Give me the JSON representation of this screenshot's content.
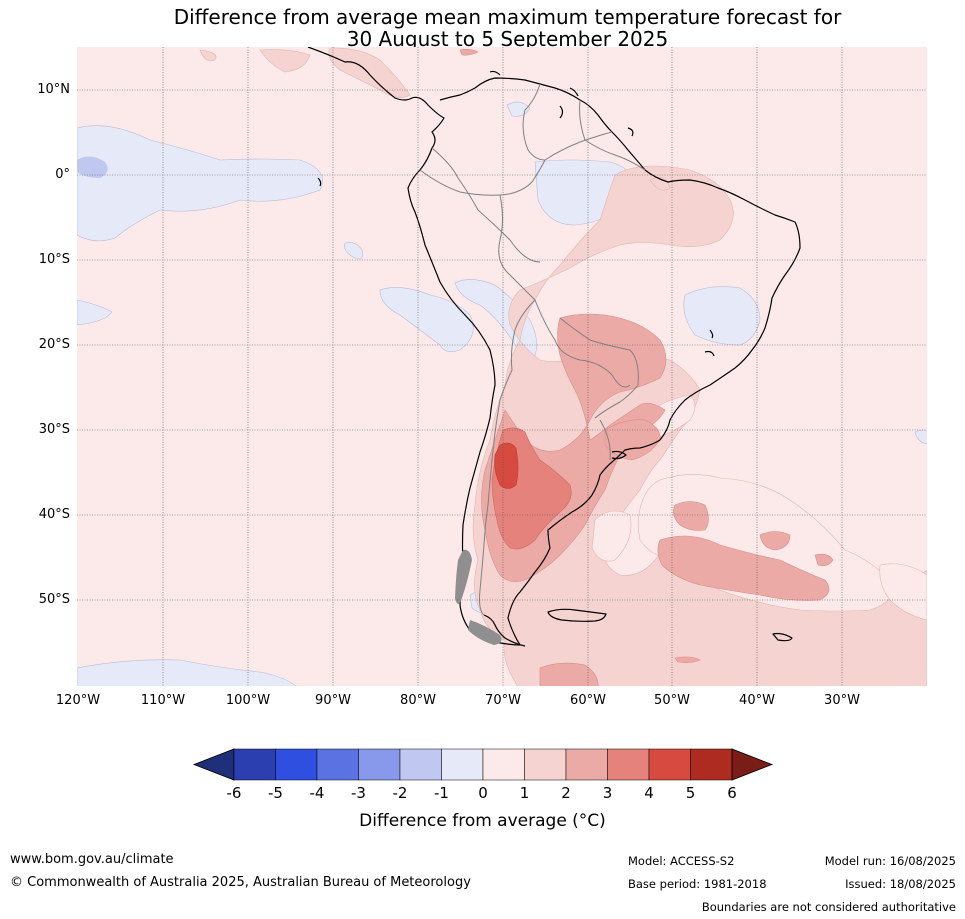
{
  "title_line1": "Difference from average mean maximum temperature forecast for",
  "title_line2": "30 August to 5 September 2025",
  "lat_labels": [
    "10°N",
    "0°",
    "10°S",
    "20°S",
    "30°S",
    "40°S",
    "50°S"
  ],
  "lon_labels": [
    "120°W",
    "110°W",
    "100°W",
    "90°W",
    "80°W",
    "70°W",
    "60°W",
    "50°W",
    "40°W",
    "30°W"
  ],
  "colorbar": {
    "ticks": [
      "-6",
      "-5",
      "-4",
      "-3",
      "-2",
      "-1",
      "0",
      "1",
      "2",
      "3",
      "4",
      "5",
      "6"
    ],
    "colors": [
      "#2c3fb0",
      "#2f4fe0",
      "#5b72e2",
      "#8898ea",
      "#c0c7f0",
      "#e6e9f8",
      "#fbeae9",
      "#f4d3d1",
      "#ecaaa6",
      "#e4827b",
      "#d74a3f",
      "#ae2b22"
    ],
    "low_extend_color": "#1f2f7a",
    "high_extend_color": "#7a1d16",
    "label": "Difference from average (°C)"
  },
  "footer": {
    "website": "www.bom.gov.au/climate",
    "copyright": "© Commonwealth of Australia 2025, Australian Bureau of Meteorology",
    "model": "Model: ACCESS-S2",
    "model_run": "Model run: 16/08/2025",
    "base_period": "Base period: 1981-2018",
    "issued": "Issued: 18/08/2025",
    "disclaimer": "Boundaries are not considered authoritative"
  }
}
